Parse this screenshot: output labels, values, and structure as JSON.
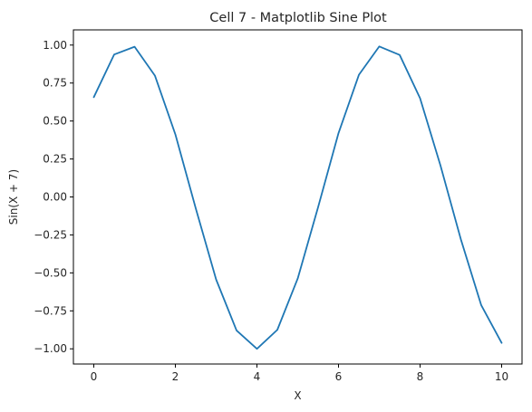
{
  "chart_data": {
    "type": "line",
    "title": "Cell 7 - Matplotlib Sine Plot",
    "xlabel": "X",
    "ylabel": "Sin(X + 7)",
    "xlim": [
      -0.5,
      10.5
    ],
    "ylim": [
      -1.1,
      1.1
    ],
    "grid": false,
    "x_ticks": [
      0,
      2,
      4,
      6,
      8,
      10
    ],
    "x_tick_labels": [
      "0",
      "2",
      "4",
      "6",
      "8",
      "10"
    ],
    "y_ticks": [
      -1.0,
      -0.75,
      -0.5,
      -0.25,
      0.0,
      0.25,
      0.5,
      0.75,
      1.0
    ],
    "y_tick_labels": [
      "−1.00",
      "−0.75",
      "−0.50",
      "−0.25",
      "0.00",
      "0.25",
      "0.50",
      "0.75",
      "1.00"
    ],
    "series": [
      {
        "color": "#1f77b4",
        "x": [
          0,
          0.5,
          1,
          1.5,
          2,
          2.5,
          3,
          3.5,
          4,
          4.5,
          5,
          5.5,
          6,
          6.5,
          7,
          7.5,
          8,
          8.5,
          9,
          9.5,
          10
        ],
        "y": [
          0.657,
          0.938,
          0.989,
          0.798,
          0.412,
          -0.075,
          -0.544,
          -0.879,
          -1.0,
          -0.875,
          -0.537,
          -0.067,
          0.42,
          0.804,
          0.991,
          0.935,
          0.65,
          0.207,
          -0.279,
          -0.713,
          -0.961
        ]
      }
    ]
  }
}
